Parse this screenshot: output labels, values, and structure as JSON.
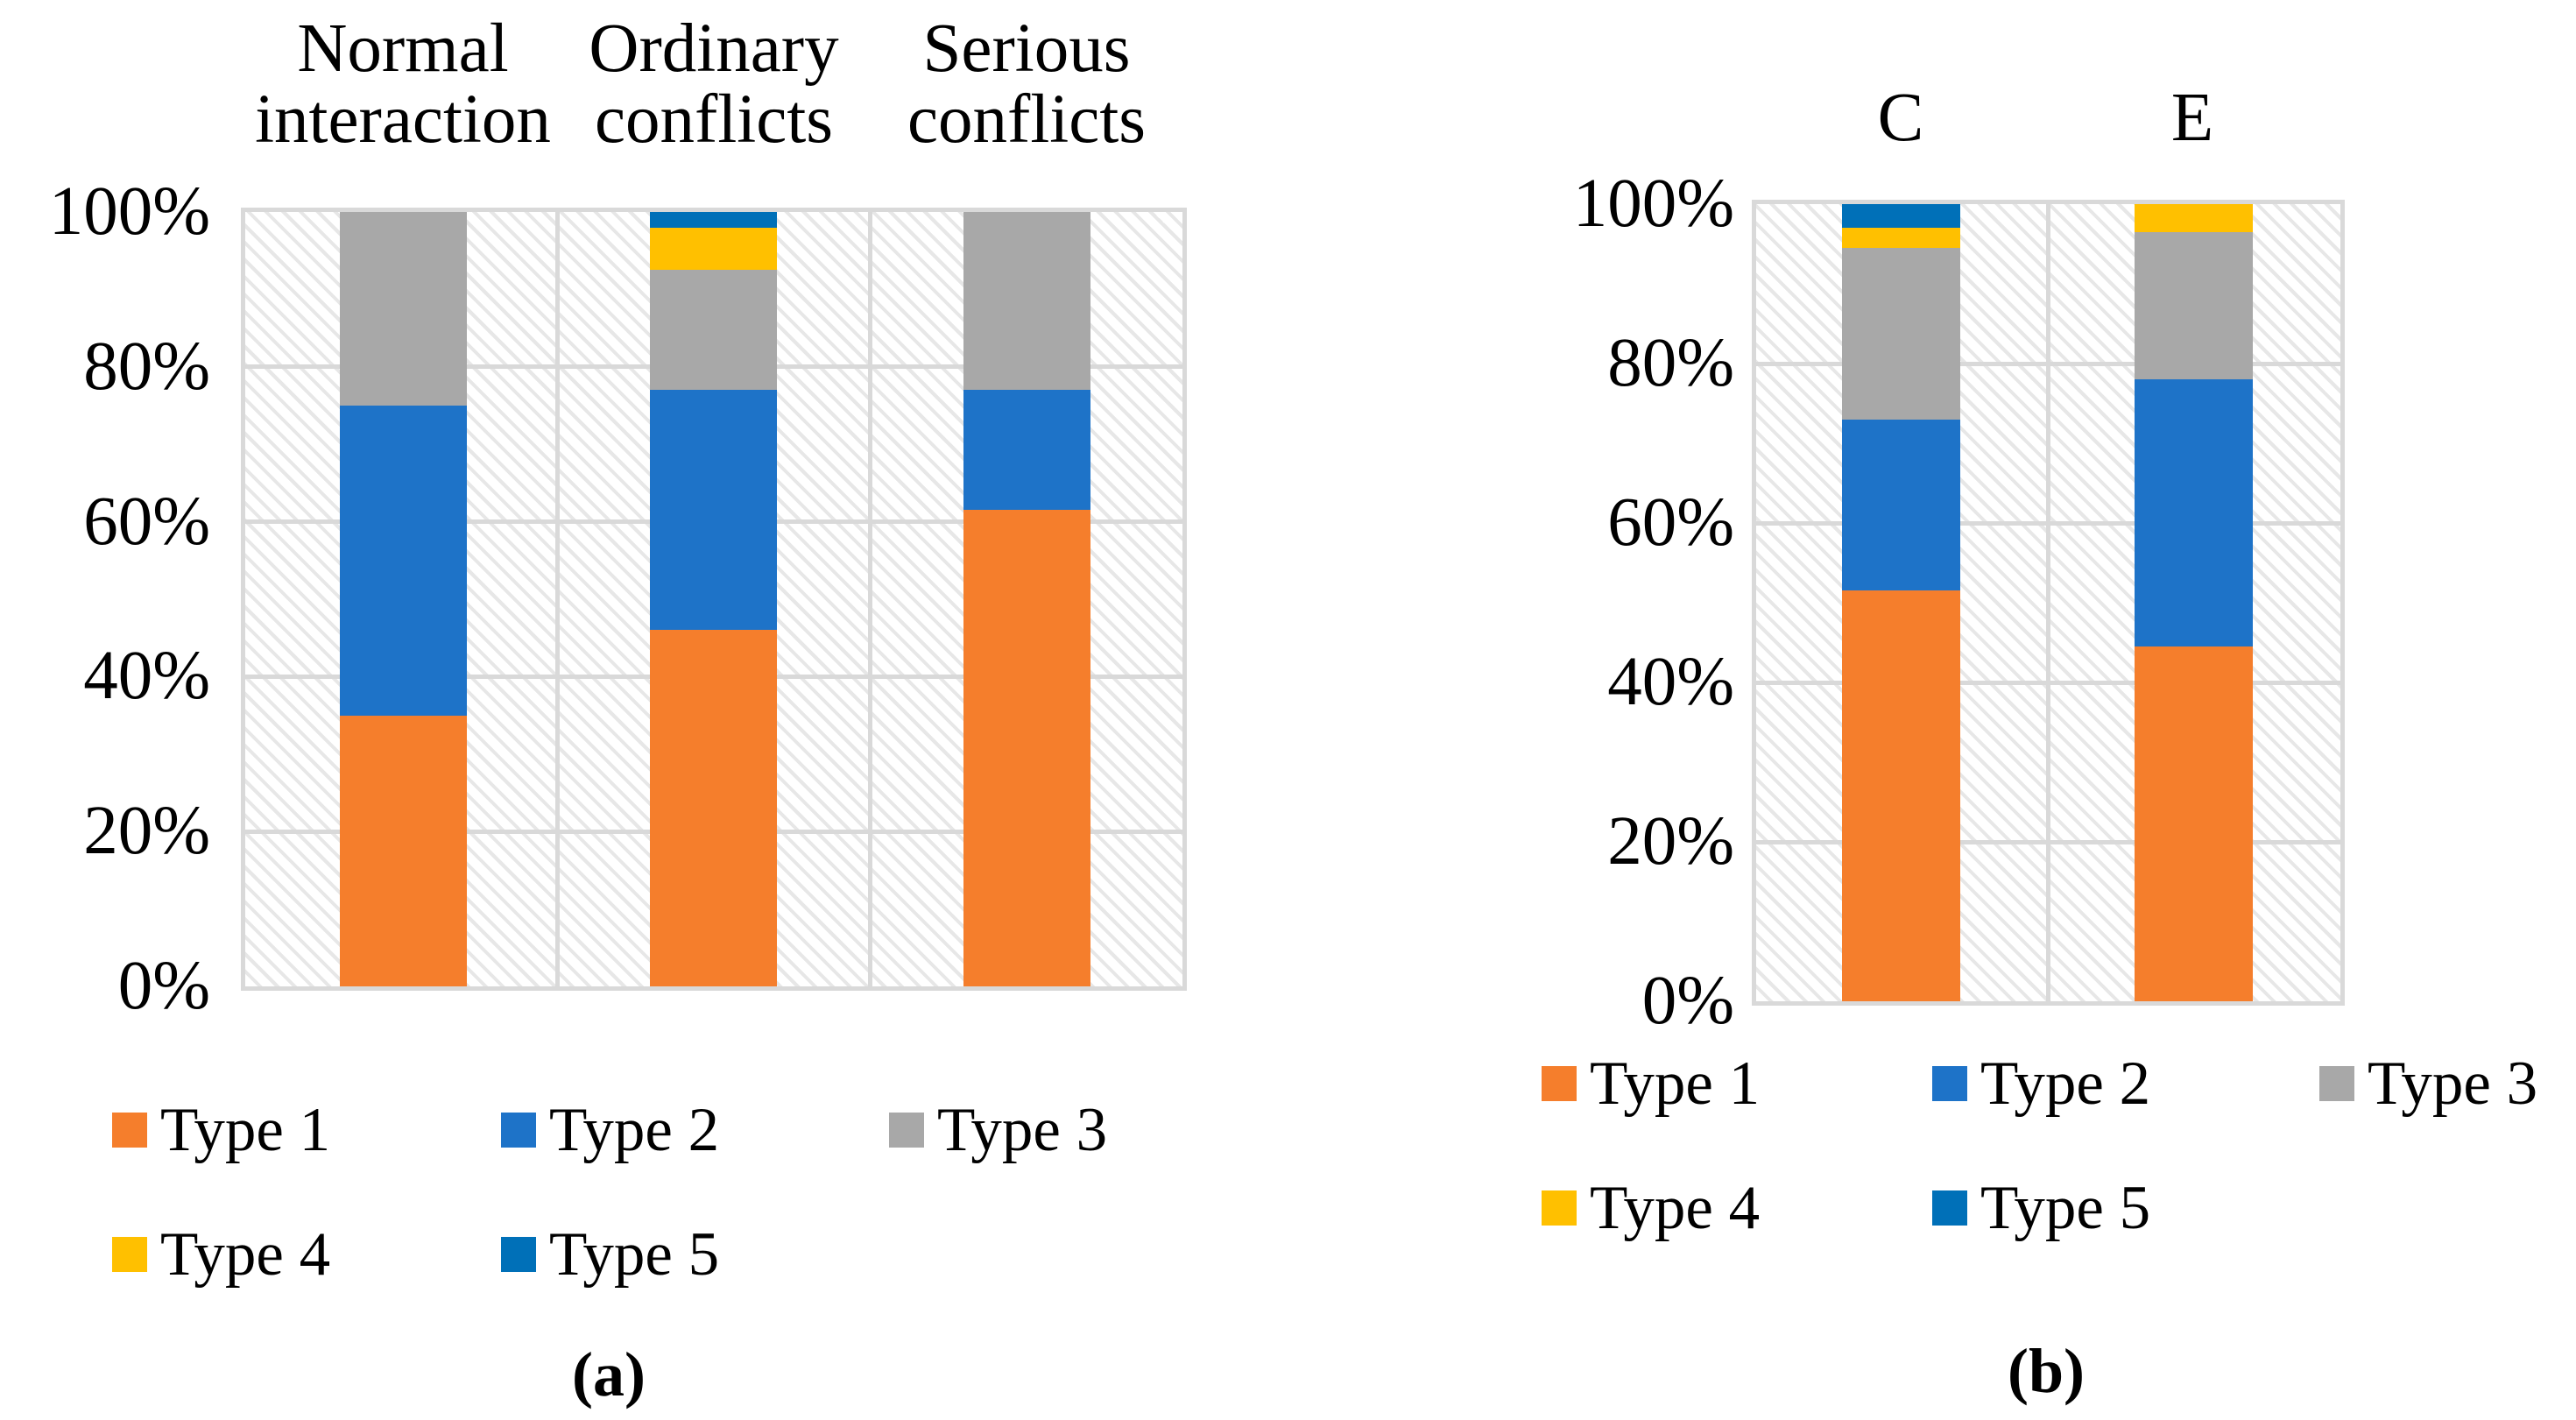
{
  "style": {
    "background": "#FFFFFF",
    "text_color": "#000000",
    "grid_color": "#D9D9D9",
    "hatch_color": "#E7E7E7"
  },
  "chart_data": [
    {
      "id": "a",
      "type": "bar",
      "subtype": "stacked-100-percent",
      "caption": "(a)",
      "categories": [
        "Normal interaction",
        "Ordinary conflicts",
        "Serious conflicts"
      ],
      "y_ticks": [
        "100%",
        "80%",
        "60%",
        "40%",
        "20%",
        "0%"
      ],
      "ylim": [
        0,
        100
      ],
      "grid": true,
      "legend_position": "bottom",
      "series": [
        {
          "name": "Type 1",
          "color": "#F57E2C",
          "values": [
            35,
            46,
            61.5
          ]
        },
        {
          "name": "Type 2",
          "color": "#1E73C8",
          "values": [
            40,
            31,
            15.5
          ]
        },
        {
          "name": "Type 3",
          "color": "#A8A8A8",
          "values": [
            25,
            15.5,
            23
          ]
        },
        {
          "name": "Type 4",
          "color": "#FFC000",
          "values": [
            0,
            5.5,
            0
          ]
        },
        {
          "name": "Type 5",
          "color": "#0070B8",
          "values": [
            0,
            2,
            0
          ]
        }
      ],
      "legend_rows": [
        [
          "Type 1",
          "Type 2",
          "Type 3"
        ],
        [
          "Type 4",
          "Type 5"
        ]
      ]
    },
    {
      "id": "b",
      "type": "bar",
      "subtype": "stacked-100-percent",
      "caption": "(b)",
      "categories": [
        "C",
        "E"
      ],
      "y_ticks": [
        "100%",
        "80%",
        "60%",
        "40%",
        "20%",
        "0%"
      ],
      "ylim": [
        0,
        100
      ],
      "grid": true,
      "legend_position": "bottom",
      "series": [
        {
          "name": "Type 1",
          "color": "#F57E2C",
          "values": [
            51.5,
            44.5
          ]
        },
        {
          "name": "Type 2",
          "color": "#1E73C8",
          "values": [
            21.5,
            33.5
          ]
        },
        {
          "name": "Type 3",
          "color": "#A8A8A8",
          "values": [
            21.5,
            18.5
          ]
        },
        {
          "name": "Type 4",
          "color": "#FFC000",
          "values": [
            2.5,
            3.5
          ]
        },
        {
          "name": "Type 5",
          "color": "#0070B8",
          "values": [
            3,
            0
          ]
        }
      ],
      "legend_rows": [
        [
          "Type 1",
          "Type 2",
          "Type 3"
        ],
        [
          "Type 4",
          "Type 5"
        ]
      ]
    }
  ]
}
